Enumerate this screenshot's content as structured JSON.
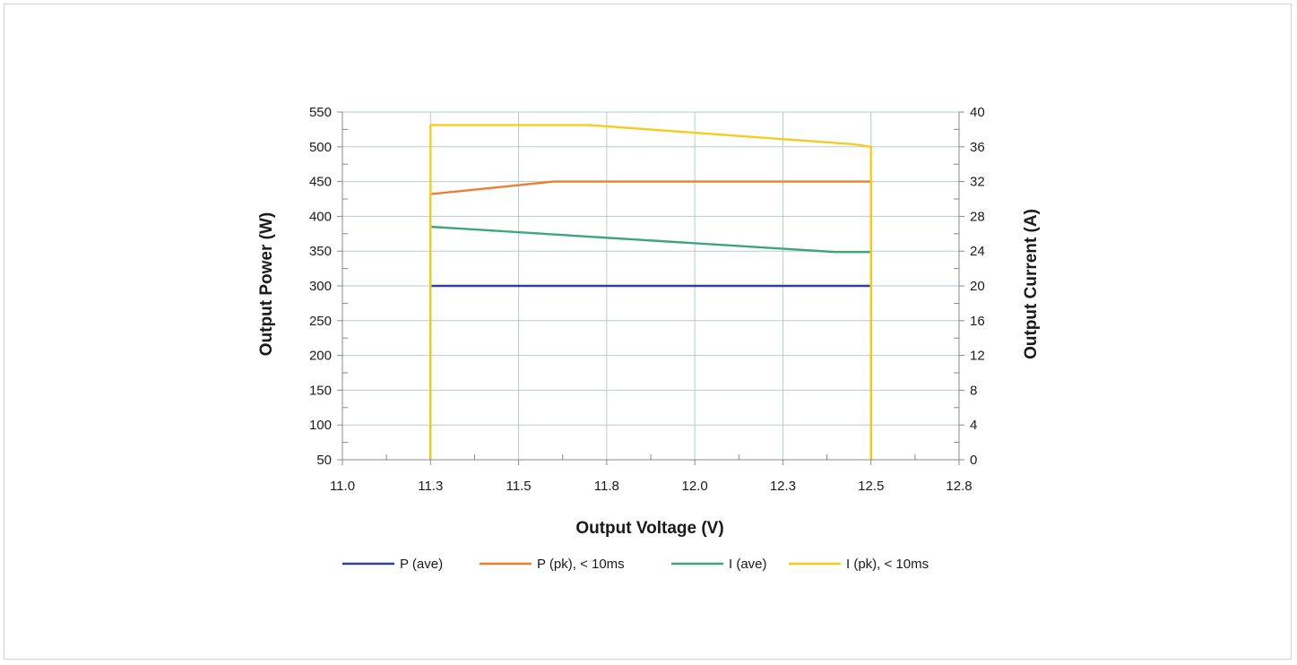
{
  "chart_data": {
    "type": "line",
    "title": "",
    "xlabel": "Output Voltage (V)",
    "ylabel_left": "Output Power (W)",
    "ylabel_right": "Output Current (A)",
    "x_ticks": [
      "11.0",
      "11.3",
      "11.5",
      "11.8",
      "12.0",
      "12.3",
      "12.5",
      "12.8"
    ],
    "y_left_ticks": [
      "50",
      "100",
      "150",
      "200",
      "250",
      "300",
      "350",
      "400",
      "450",
      "500",
      "550"
    ],
    "y_right_ticks": [
      "0",
      "4",
      "8",
      "12",
      "16",
      "20",
      "24",
      "28",
      "32",
      "36",
      "40"
    ],
    "xlim": [
      11.0,
      12.75
    ],
    "ylim_left": [
      50,
      550
    ],
    "ylim_right": [
      0,
      40
    ],
    "grid": true,
    "legend_position": "bottom",
    "series": [
      {
        "name": "P (ave)",
        "axis": "left",
        "color": "#2e3f9e",
        "points": [
          [
            11.25,
            50
          ],
          [
            11.25,
            300
          ],
          [
            12.5,
            300
          ],
          [
            12.5,
            50
          ]
        ]
      },
      {
        "name": "P (pk), < 10ms",
        "axis": "left",
        "color": "#ed7d31",
        "points": [
          [
            11.25,
            50
          ],
          [
            11.25,
            432
          ],
          [
            11.6,
            450
          ],
          [
            12.5,
            450
          ],
          [
            12.5,
            50
          ]
        ]
      },
      {
        "name": "I (ave)",
        "axis": "right",
        "color": "#3aa67a",
        "points": [
          [
            11.25,
            0
          ],
          [
            11.25,
            26.8
          ],
          [
            12.4,
            23.9
          ],
          [
            12.5,
            23.9
          ],
          [
            12.5,
            0
          ]
        ]
      },
      {
        "name": "I (pk), < 10ms",
        "axis": "right",
        "color": "#f5cd1f",
        "points": [
          [
            11.25,
            0
          ],
          [
            11.25,
            38.5
          ],
          [
            11.7,
            38.5
          ],
          [
            12.45,
            36.3
          ],
          [
            12.5,
            36.0
          ],
          [
            12.5,
            0
          ]
        ]
      }
    ]
  }
}
